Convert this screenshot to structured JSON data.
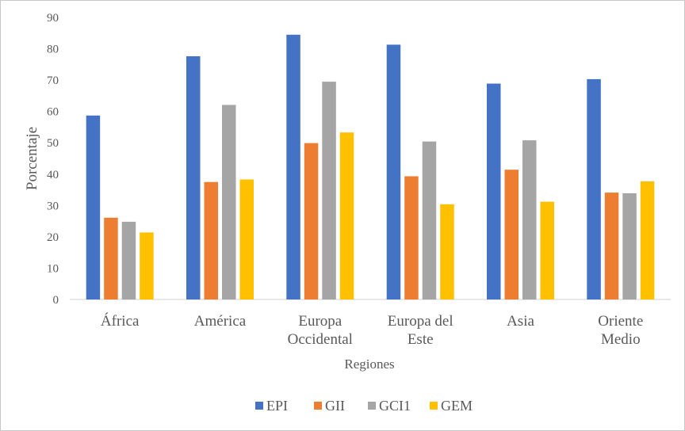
{
  "chart_data": {
    "type": "bar",
    "title": "",
    "xlabel": "Regiones",
    "ylabel": "Porcentaje",
    "ylim": [
      0,
      90
    ],
    "ytick_step": 10,
    "grid": false,
    "legend_position": "bottom",
    "categories": [
      [
        "África"
      ],
      [
        "América"
      ],
      [
        "Europa",
        "Occidental"
      ],
      [
        "Europa del",
        "Este"
      ],
      [
        "Asia"
      ],
      [
        "Oriente",
        "Medio"
      ]
    ],
    "series": [
      {
        "name": "EPI",
        "color": "#4472c4",
        "values": [
          58.7,
          77.6,
          84.5,
          81.3,
          68.9,
          70.3
        ]
      },
      {
        "name": "GII",
        "color": "#ed7d31",
        "values": [
          26.1,
          37.5,
          49.9,
          39.3,
          41.4,
          34.1
        ]
      },
      {
        "name": "GCI1",
        "color": "#a5a5a5",
        "values": [
          24.8,
          62.1,
          69.5,
          50.4,
          50.8,
          33.9
        ]
      },
      {
        "name": "GEM",
        "color": "#ffc000",
        "values": [
          21.4,
          38.3,
          53.3,
          30.4,
          31.2,
          37.7
        ]
      }
    ]
  }
}
